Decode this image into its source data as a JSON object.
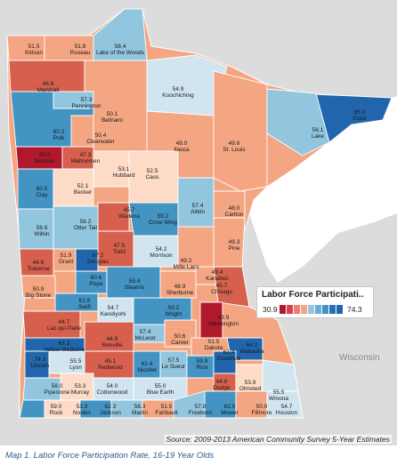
{
  "legend": {
    "title": "Labor Force Participati..",
    "min_label": "30.9",
    "max_label": "74.3"
  },
  "colors": [
    "#b2182b",
    "#d6604d",
    "#f4a582",
    "#fddbc7",
    "#d1e5f0",
    "#92c5de",
    "#4393c3",
    "#2166ac"
  ],
  "legend_colors": [
    "#b2182b",
    "#d6404d",
    "#ea7d74",
    "#f4a582",
    "#92c5de",
    "#6aaed6",
    "#4393c3",
    "#2d6eb3",
    "#2166ac"
  ],
  "state_label": "Wisconsin",
  "source": "Source: 2009-2013 American Community Survey 5-Year Estimates",
  "caption": "Map 1. Labor Force Participation Rate, 16-19 Year Olds",
  "counties": [
    {
      "name": "Kittson",
      "value": "51.5"
    },
    {
      "name": "Roseau",
      "value": "51.8"
    },
    {
      "name": "Lake of the Woods",
      "value": "58.4"
    },
    {
      "name": "Marshall",
      "value": "46.8"
    },
    {
      "name": "Pennington",
      "value": "57.3"
    },
    {
      "name": "Koochiching",
      "value": "54.9"
    },
    {
      "name": "Beltrami",
      "value": "50.1"
    },
    {
      "name": "Cook",
      "value": "65.0"
    },
    {
      "name": "Polk",
      "value": "60.2"
    },
    {
      "name": "Clearwater",
      "value": "50.4"
    },
    {
      "name": "Lake",
      "value": "56.1"
    },
    {
      "name": "Norman",
      "value": "30.9"
    },
    {
      "name": "Mahnomen",
      "value": "47.3"
    },
    {
      "name": "Itasca",
      "value": "49.0"
    },
    {
      "name": "St. Louis",
      "value": "49.6"
    },
    {
      "name": "Hubbard",
      "value": "53.1"
    },
    {
      "name": "Cass",
      "value": "52.5"
    },
    {
      "name": "Clay",
      "value": "60.5"
    },
    {
      "name": "Becker",
      "value": "52.1"
    },
    {
      "name": "Carlton",
      "value": "48.0"
    },
    {
      "name": "Aitkin",
      "value": "57.4"
    },
    {
      "name": "Wadena",
      "value": "45.7"
    },
    {
      "name": "Crow Wing",
      "value": "59.2"
    },
    {
      "name": "Otter Tail",
      "value": "56.2"
    },
    {
      "name": "Wilkin",
      "value": "58.6"
    },
    {
      "name": "Pine",
      "value": "49.3"
    },
    {
      "name": "Todd",
      "value": "47.5"
    },
    {
      "name": "Morrison",
      "value": "54.2"
    },
    {
      "name": "Grant",
      "value": "51.9"
    },
    {
      "name": "Douglas",
      "value": "67.2"
    },
    {
      "name": "Traverse",
      "value": "44.6"
    },
    {
      "name": "Mille Lacs",
      "value": "49.2"
    },
    {
      "name": "Kanabec",
      "value": "49.4"
    },
    {
      "name": "Pope",
      "value": "60.6"
    },
    {
      "name": "Stearns",
      "value": "59.4"
    },
    {
      "name": "Big Stone",
      "value": "50.9"
    },
    {
      "name": "Chisago",
      "value": "45.7"
    },
    {
      "name": "Sherburne",
      "value": "48.9"
    },
    {
      "name": "Swift",
      "value": "61.9"
    },
    {
      "name": "Kandiyohi",
      "value": "54.7"
    },
    {
      "name": "Wright",
      "value": "59.2"
    },
    {
      "name": "Lac qui Parle",
      "value": "44.7"
    },
    {
      "name": "Washington",
      "value": "43.9"
    },
    {
      "name": "Renville",
      "value": "44.8"
    },
    {
      "name": "McLeod",
      "value": "57.4"
    },
    {
      "name": "Carver",
      "value": "50.6"
    },
    {
      "name": "Yellow Medicine",
      "value": "63.3"
    },
    {
      "name": "Dakota",
      "value": "51.5"
    },
    {
      "name": "Lincoln",
      "value": "74.3"
    },
    {
      "name": "Lyon",
      "value": "55.5"
    },
    {
      "name": "Redwood",
      "value": "45.1"
    },
    {
      "name": "Nicollet",
      "value": "62.4"
    },
    {
      "name": "Le Sueur",
      "value": "57.5"
    },
    {
      "name": "Rice",
      "value": "59.9"
    },
    {
      "name": "Wabasha",
      "value": "64.2"
    },
    {
      "name": "Goodhue",
      "value": "63.4"
    },
    {
      "name": "Dodge",
      "value": "44.8"
    },
    {
      "name": "Olmsted",
      "value": "53.9"
    },
    {
      "name": "Winona",
      "value": "55.5"
    },
    {
      "name": "Pipestone",
      "value": "58.0"
    },
    {
      "name": "Murray",
      "value": "53.3"
    },
    {
      "name": "Cottonwood",
      "value": "54.0"
    },
    {
      "name": "Blue Earth",
      "value": "55.0"
    },
    {
      "name": "Rock",
      "value": "59.0"
    },
    {
      "name": "Nobles",
      "value": "53.3"
    },
    {
      "name": "Jackson",
      "value": "62.3"
    },
    {
      "name": "Martin",
      "value": "58.3"
    },
    {
      "name": "Faribault",
      "value": "51.5"
    },
    {
      "name": "Freeborn",
      "value": "57.8"
    },
    {
      "name": "Mower",
      "value": "62.5"
    },
    {
      "name": "Fillmore",
      "value": "50.0"
    },
    {
      "name": "Houston",
      "value": "54.7"
    }
  ]
}
